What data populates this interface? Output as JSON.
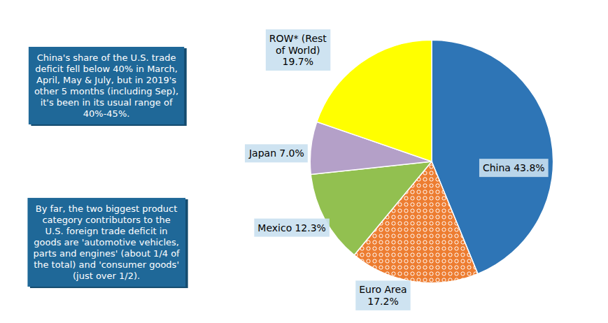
{
  "chart_data": {
    "type": "pie",
    "categories": [
      "China",
      "Euro Area",
      "Mexico",
      "Japan",
      "ROW* (Rest\nof World)"
    ],
    "values": [
      43.8,
      17.2,
      12.3,
      7.0,
      19.7
    ],
    "value_labels": [
      "43.8%",
      "17.2%",
      "12.3%",
      "7.0%",
      "19.7%"
    ],
    "data_labels": true,
    "colors": [
      "#2E75B6",
      "#ED7D31",
      "#92C050",
      "#B4A0C8",
      "#FFFF00"
    ],
    "annotations": [
      "China's share of the U.S. trade\ndeficit fell below 40% in March,\nApril, May & July, but in 2019's\nother 5 months (including Sep),\nit's been in its usual range of\n40%-45%.",
      "By far, the two biggest product\ncategory contributors to the\nU.S. foreign trade deficit in\ngoods are 'automotive vehicles,\nparts and engines' (about 1/4 of\nthe total) and 'consumer goods'\n(just over 1/2)."
    ]
  }
}
